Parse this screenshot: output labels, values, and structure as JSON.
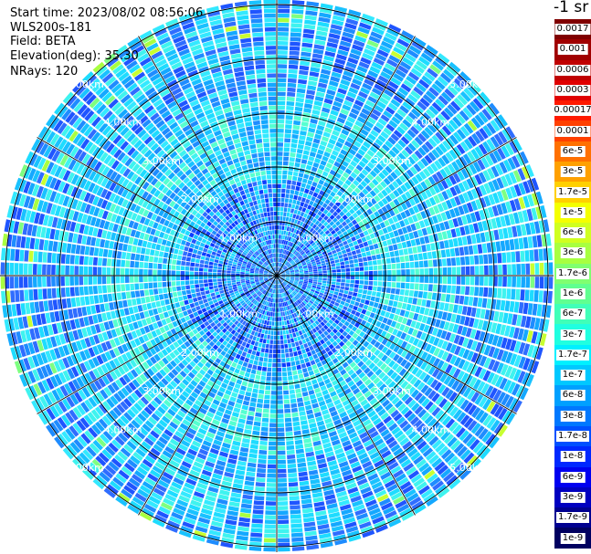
{
  "header": {
    "start_time": "Start time: 2023/08/02 08:56:06",
    "instrument": "WLS200s-181",
    "field": "Field: BETA",
    "elevation": "Elevation(deg): 35.30",
    "nrays": "NRays: 120"
  },
  "units_label": "-1 sr",
  "range_labels": [
    "1.00km",
    "2.00km",
    "3.00km",
    "4.00km",
    "5.00km"
  ],
  "nrays": 120,
  "colorbar": [
    {
      "label": "0.0017",
      "color": "#800000"
    },
    {
      "label": "0.001",
      "color": "#a00000"
    },
    {
      "label": "0.0006",
      "color": "#c00000"
    },
    {
      "label": "0.0003",
      "color": "#e00000"
    },
    {
      "label": "0.00017",
      "color": "#ff1a00"
    },
    {
      "label": "0.0001",
      "color": "#ff4000"
    },
    {
      "label": "6e-5",
      "color": "#ff7000"
    },
    {
      "label": "3e-5",
      "color": "#ffa000"
    },
    {
      "label": "1.7e-5",
      "color": "#ffd000"
    },
    {
      "label": "1e-5",
      "color": "#f4ff00"
    },
    {
      "label": "6e-6",
      "color": "#d0ff20"
    },
    {
      "label": "3e-6",
      "color": "#a8ff40"
    },
    {
      "label": "1.7e-6",
      "color": "#80ff70"
    },
    {
      "label": "1e-6",
      "color": "#60ff90"
    },
    {
      "label": "6e-7",
      "color": "#40ffb8"
    },
    {
      "label": "3e-7",
      "color": "#20ffe0"
    },
    {
      "label": "1.7e-7",
      "color": "#00f0ff"
    },
    {
      "label": "1e-7",
      "color": "#00c8ff"
    },
    {
      "label": "6e-8",
      "color": "#00a0ff"
    },
    {
      "label": "3e-8",
      "color": "#0078ff"
    },
    {
      "label": "1.7e-8",
      "color": "#0050ff"
    },
    {
      "label": "1e-8",
      "color": "#0028ff"
    },
    {
      "label": "6e-9",
      "color": "#0000f0"
    },
    {
      "label": "3e-9",
      "color": "#0000c0"
    },
    {
      "label": "1.7e-9",
      "color": "#000090"
    },
    {
      "label": "1e-9",
      "color": "#000060"
    }
  ]
}
